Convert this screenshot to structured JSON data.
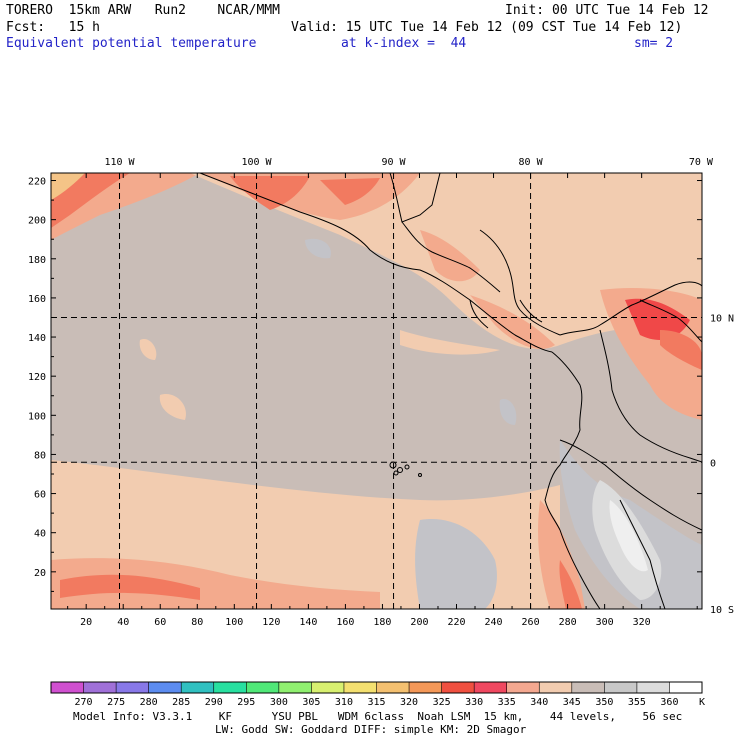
{
  "header": {
    "model": "TORERO  15km ARW   Run2    NCAR/MMM",
    "init": "Init: 00 UTC Tue 14 Feb 12",
    "fcst": "Fcst:   15 h",
    "valid": "Valid: 15 UTC Tue 14 Feb 12 (09 CST Tue 14 Feb 12)",
    "field": "Equivalent potential temperature",
    "level": "at k-index =  44",
    "smooth": "sm= 2"
  },
  "map": {
    "top_lon_labels": [
      "110 W",
      "100 W",
      "90 W",
      "80 W",
      "70 W"
    ],
    "right_lat_labels": [
      "10 N",
      "0",
      "10 S"
    ],
    "y_ticks": [
      "220",
      "200",
      "180",
      "160",
      "140",
      "120",
      "100",
      "80",
      "60",
      "40",
      "20"
    ],
    "x_ticks": [
      "20",
      "40",
      "60",
      "80",
      "100",
      "120",
      "140",
      "160",
      "180",
      "200",
      "220",
      "240",
      "260",
      "280",
      "300",
      "320"
    ],
    "grid_x": [
      38,
      112,
      186,
      260
    ],
    "grid_y": [
      150,
      76
    ],
    "colors": {
      "background": "#c9bdb7",
      "warm_light": "#f2ccb0",
      "warm": "#f3aa8d",
      "hot": "#f27a60",
      "red": "#f04848",
      "cool": "#c3c3c8",
      "cold": "#dcdcdc",
      "white": "#efefef",
      "yellowish": "#f4c487"
    }
  },
  "colorbar": {
    "labels": [
      "270",
      "275",
      "280",
      "285",
      "290",
      "295",
      "300",
      "305",
      "310",
      "315",
      "320",
      "325",
      "330",
      "335",
      "340",
      "345",
      "350",
      "355",
      "360"
    ],
    "unit": "K",
    "colors": [
      "#d050d0",
      "#a070d8",
      "#8878e8",
      "#5c8cf0",
      "#30c0c0",
      "#28e0a0",
      "#50e878",
      "#90f070",
      "#d8f070",
      "#f4e070",
      "#f4c070",
      "#f49858",
      "#f05040",
      "#f04860",
      "#f4a890",
      "#f2ccb0",
      "#c9bdb7",
      "#c8c8c8",
      "#dcdcdc",
      "#ffffff"
    ]
  },
  "footer": {
    "line1": "Model Info: V3.3.1    KF      YSU PBL   WDM 6class  Noah LSM  15 km,    44 levels,    56 sec",
    "line2": "LW: Godd SW: Goddard DIFF: simple KM: 2D Smagor"
  }
}
